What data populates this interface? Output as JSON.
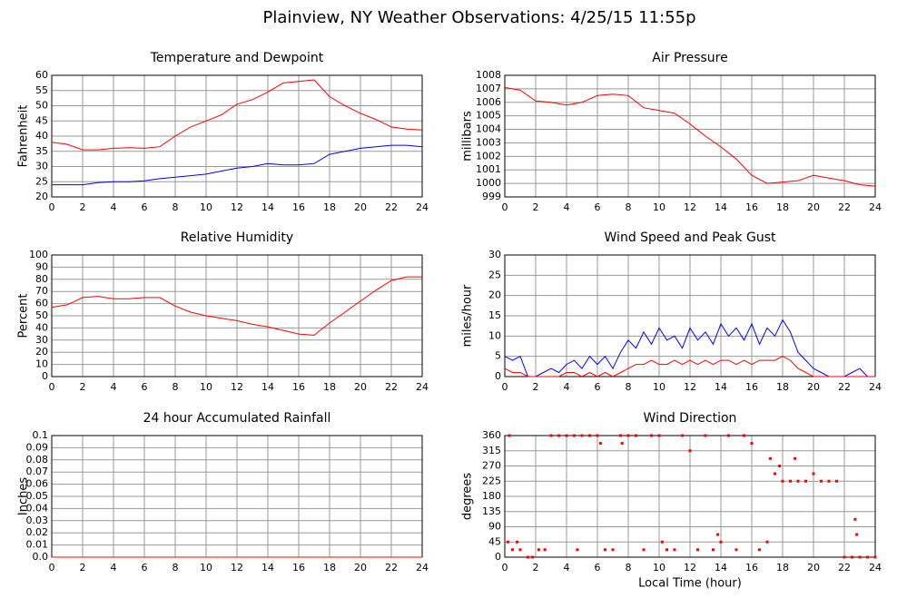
{
  "title": "Plainview, NY Weather Observations: 4/25/15 11:55p",
  "chart_data": [
    {
      "type": "line",
      "title": "Temperature and Dewpoint",
      "ylabel": "Fahrenheit",
      "x": [
        0,
        1,
        2,
        3,
        4,
        5,
        6,
        7,
        8,
        9,
        10,
        11,
        12,
        13,
        14,
        15,
        16,
        17,
        18,
        19,
        20,
        21,
        22,
        23,
        24
      ],
      "series": [
        {
          "color": "#ff0000",
          "values": [
            38,
            37.3,
            35.5,
            35.5,
            36,
            36.2,
            36,
            36.5,
            40,
            43,
            45,
            47,
            50.5,
            52,
            54.5,
            57.5,
            58,
            58.5,
            53,
            50,
            47.5,
            45.5,
            43,
            42.3,
            42
          ]
        },
        {
          "color": "#0000ff",
          "values": [
            24,
            24,
            24,
            24.7,
            25,
            25,
            25.3,
            26,
            26.5,
            27,
            27.5,
            28.5,
            29.5,
            30,
            31,
            30.5,
            30.5,
            31,
            34,
            35,
            36,
            36.5,
            37,
            37,
            36.5
          ]
        }
      ],
      "xlim": [
        0,
        24
      ],
      "xticks": [
        0,
        2,
        4,
        6,
        8,
        10,
        12,
        14,
        16,
        18,
        20,
        22,
        24
      ],
      "ylim": [
        20,
        60
      ],
      "yticks": [
        20,
        25,
        30,
        35,
        40,
        45,
        50,
        55,
        60
      ],
      "grid": true
    },
    {
      "type": "line",
      "title": "Air Pressure",
      "ylabel": "millibars",
      "x": [
        0,
        1,
        2,
        3,
        4,
        5,
        6,
        7,
        8,
        9,
        10,
        11,
        12,
        13,
        14,
        15,
        16,
        17,
        18,
        19,
        20,
        21,
        22,
        23,
        24
      ],
      "series": [
        {
          "color": "#ff0000",
          "values": [
            1007.1,
            1006.9,
            1006.1,
            1006,
            1005.8,
            1006,
            1006.5,
            1006.6,
            1006.5,
            1005.6,
            1005.4,
            1005.2,
            1004.4,
            1003.5,
            1002.7,
            1001.8,
            1000.6,
            1000,
            1000.1,
            1000.2,
            1000.6,
            1000.4,
            1000.2,
            999.9,
            999.8
          ]
        }
      ],
      "xlim": [
        0,
        24
      ],
      "xticks": [
        0,
        2,
        4,
        6,
        8,
        10,
        12,
        14,
        16,
        18,
        20,
        22,
        24
      ],
      "ylim": [
        999,
        1008
      ],
      "yticks": [
        999,
        1000,
        1001,
        1002,
        1003,
        1004,
        1005,
        1006,
        1007,
        1008
      ],
      "grid": true
    },
    {
      "type": "line",
      "title": "Relative Humidity",
      "ylabel": "Percent",
      "x": [
        0,
        1,
        2,
        3,
        4,
        5,
        6,
        7,
        8,
        9,
        10,
        11,
        12,
        13,
        14,
        15,
        16,
        17,
        18,
        19,
        20,
        21,
        22,
        23,
        24
      ],
      "series": [
        {
          "color": "#ff0000",
          "values": [
            57,
            59,
            65,
            66,
            64,
            64,
            65,
            65,
            58,
            53,
            50,
            48,
            46,
            43,
            41,
            38,
            35,
            34,
            44,
            53,
            62,
            71,
            79,
            82,
            82
          ]
        }
      ],
      "xlim": [
        0,
        24
      ],
      "xticks": [
        0,
        2,
        4,
        6,
        8,
        10,
        12,
        14,
        16,
        18,
        20,
        22,
        24
      ],
      "ylim": [
        0,
        100
      ],
      "yticks": [
        0,
        10,
        20,
        30,
        40,
        50,
        60,
        70,
        80,
        90,
        100
      ],
      "grid": true
    },
    {
      "type": "line",
      "title": "Wind Speed and Peak Gust",
      "ylabel": "miles/hour",
      "x": [
        0,
        0.5,
        1,
        1.5,
        2,
        2.5,
        3,
        3.5,
        4,
        4.5,
        5,
        5.5,
        6,
        6.5,
        7,
        7.5,
        8,
        8.5,
        9,
        9.5,
        10,
        10.5,
        11,
        11.5,
        12,
        12.5,
        13,
        13.5,
        14,
        14.5,
        15,
        15.5,
        16,
        16.5,
        17,
        17.5,
        18,
        18.5,
        19,
        19.5,
        20,
        20.5,
        21,
        21.5,
        22,
        22.5,
        23,
        23.5,
        24
      ],
      "series": [
        {
          "color": "#0000ff",
          "values": [
            5,
            4,
            5,
            0,
            0,
            1,
            2,
            1,
            3,
            4,
            2,
            5,
            3,
            5,
            2,
            6,
            9,
            7,
            11,
            8,
            12,
            9,
            10,
            7,
            12,
            9,
            11,
            8,
            13,
            10,
            12,
            9,
            13,
            8,
            12,
            10,
            14,
            11,
            6,
            4,
            2,
            1,
            0,
            0,
            0,
            1,
            2,
            0,
            0
          ]
        },
        {
          "color": "#ff0000",
          "values": [
            2,
            1,
            1,
            0,
            0,
            0,
            0,
            0,
            1,
            1,
            0,
            1,
            0,
            1,
            0,
            1,
            2,
            3,
            3,
            4,
            3,
            3,
            4,
            3,
            4,
            3,
            4,
            3,
            4,
            4,
            3,
            4,
            3,
            4,
            4,
            4,
            5,
            4,
            2,
            1,
            0,
            0,
            0,
            0,
            0,
            0,
            0,
            0,
            0
          ]
        }
      ],
      "xlim": [
        0,
        24
      ],
      "xticks": [
        0,
        2,
        4,
        6,
        8,
        10,
        12,
        14,
        16,
        18,
        20,
        22,
        24
      ],
      "ylim": [
        0,
        30
      ],
      "yticks": [
        0,
        5,
        10,
        15,
        20,
        25,
        30
      ],
      "grid": true
    },
    {
      "type": "line",
      "title": "24 hour Accumulated Rainfall",
      "ylabel": "Inches",
      "x": [
        0,
        6,
        12,
        18,
        24
      ],
      "series": [
        {
          "color": "#ff0000",
          "values": [
            0,
            0,
            0,
            0,
            0
          ]
        }
      ],
      "xlim": [
        0,
        24
      ],
      "xticks": [
        0,
        2,
        4,
        6,
        8,
        10,
        12,
        14,
        16,
        18,
        20,
        22,
        24
      ],
      "ylim": [
        0,
        0.1
      ],
      "yticks": [
        {
          "value": 0,
          "label": "0.0"
        },
        0.01,
        0.02,
        0.03,
        0.04,
        0.05,
        0.06,
        0.07,
        0.08,
        0.09,
        0.1
      ],
      "grid": true
    },
    {
      "type": "scatter",
      "title": "Wind Direction",
      "ylabel": "degrees",
      "xlabel": "Local Time (hour)",
      "x": [
        0.3,
        0.2,
        0.5,
        0.8,
        1,
        1.5,
        1.8,
        2.2,
        2.6,
        3,
        3.5,
        4,
        4.5,
        4.7,
        5,
        5.5,
        6,
        6.2,
        6.5,
        7,
        7.5,
        7.6,
        8,
        8.5,
        9,
        9.5,
        10,
        10.2,
        10.5,
        11,
        11.5,
        12,
        12.5,
        13,
        13.5,
        13.8,
        14,
        14.5,
        15,
        15.5,
        16,
        16.5,
        17,
        17.2,
        17.5,
        17.8,
        18,
        18.5,
        18.8,
        19,
        19.5,
        20,
        20.5,
        21,
        21.5,
        22,
        22.5,
        22.7,
        22.8,
        23,
        23.5,
        24
      ],
      "series": [
        {
          "color": "#ff0000",
          "values": [
            360,
            45,
            22,
            45,
            22,
            0,
            0,
            22,
            22,
            360,
            360,
            360,
            360,
            22,
            360,
            360,
            360,
            337,
            22,
            22,
            360,
            337,
            360,
            360,
            22,
            360,
            360,
            45,
            22,
            22,
            360,
            315,
            22,
            360,
            22,
            67,
            45,
            360,
            22,
            360,
            337,
            22,
            45,
            292,
            247,
            270,
            225,
            225,
            292,
            225,
            225,
            247,
            225,
            225,
            225,
            0,
            0,
            112,
            67,
            0,
            0,
            0
          ]
        }
      ],
      "xlim": [
        0,
        24
      ],
      "xticks": [
        0,
        2,
        4,
        6,
        8,
        10,
        12,
        14,
        16,
        18,
        20,
        22,
        24
      ],
      "ylim": [
        0,
        360
      ],
      "yticks": [
        0,
        45,
        90,
        135,
        180,
        225,
        270,
        315,
        360
      ],
      "grid": true
    }
  ]
}
